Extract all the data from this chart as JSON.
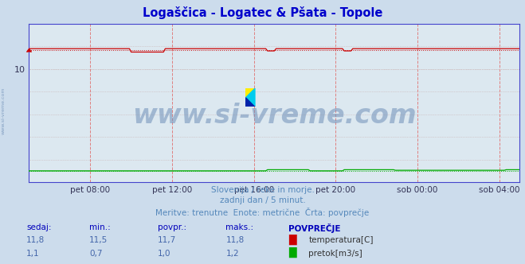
{
  "title": "Logaščica - Logatec & Pšata - Topole",
  "title_color": "#0000cc",
  "bg_color": "#ccdcec",
  "plot_bg_color": "#dce8f0",
  "grid_color_h": "#c0b0b0",
  "grid_color_v": "#e09090",
  "border_color": "#4444cc",
  "ylim": [
    0,
    14
  ],
  "x_tick_labels": [
    "pet 08:00",
    "pet 12:00",
    "pet 16:00",
    "pet 20:00",
    "sob 00:00",
    "sob 04:00"
  ],
  "temp_value": "11,8",
  "temp_min": "11,5",
  "temp_avg": "11,7",
  "temp_max": "11,8",
  "flow_value": "1,1",
  "flow_min": "0,7",
  "flow_avg": "1,0",
  "flow_max": "1,2",
  "temp_color": "#cc0000",
  "flow_color": "#00aa00",
  "height_color": "#0000cc",
  "watermark_text": "www.si-vreme.com",
  "watermark_color": "#7090b8",
  "footer_line1": "Slovenija / reke in morje.",
  "footer_line2": "zadnji dan / 5 minut.",
  "footer_line3": "Meritve: trenutne  Enote: metrične  Črta: povprečje",
  "footer_color": "#5588bb",
  "table_headers": [
    "sedaj:",
    "min.:",
    "povpr.:",
    "maks.:",
    "POVPREČJE"
  ],
  "table_header_color": "#0000bb",
  "table_value_color": "#4466aa",
  "legend_temp_label": "temperatura[C]",
  "legend_flow_label": "pretok[m3/s]",
  "left_label": "www.si-vreme.com",
  "left_label_color": "#7090b8"
}
